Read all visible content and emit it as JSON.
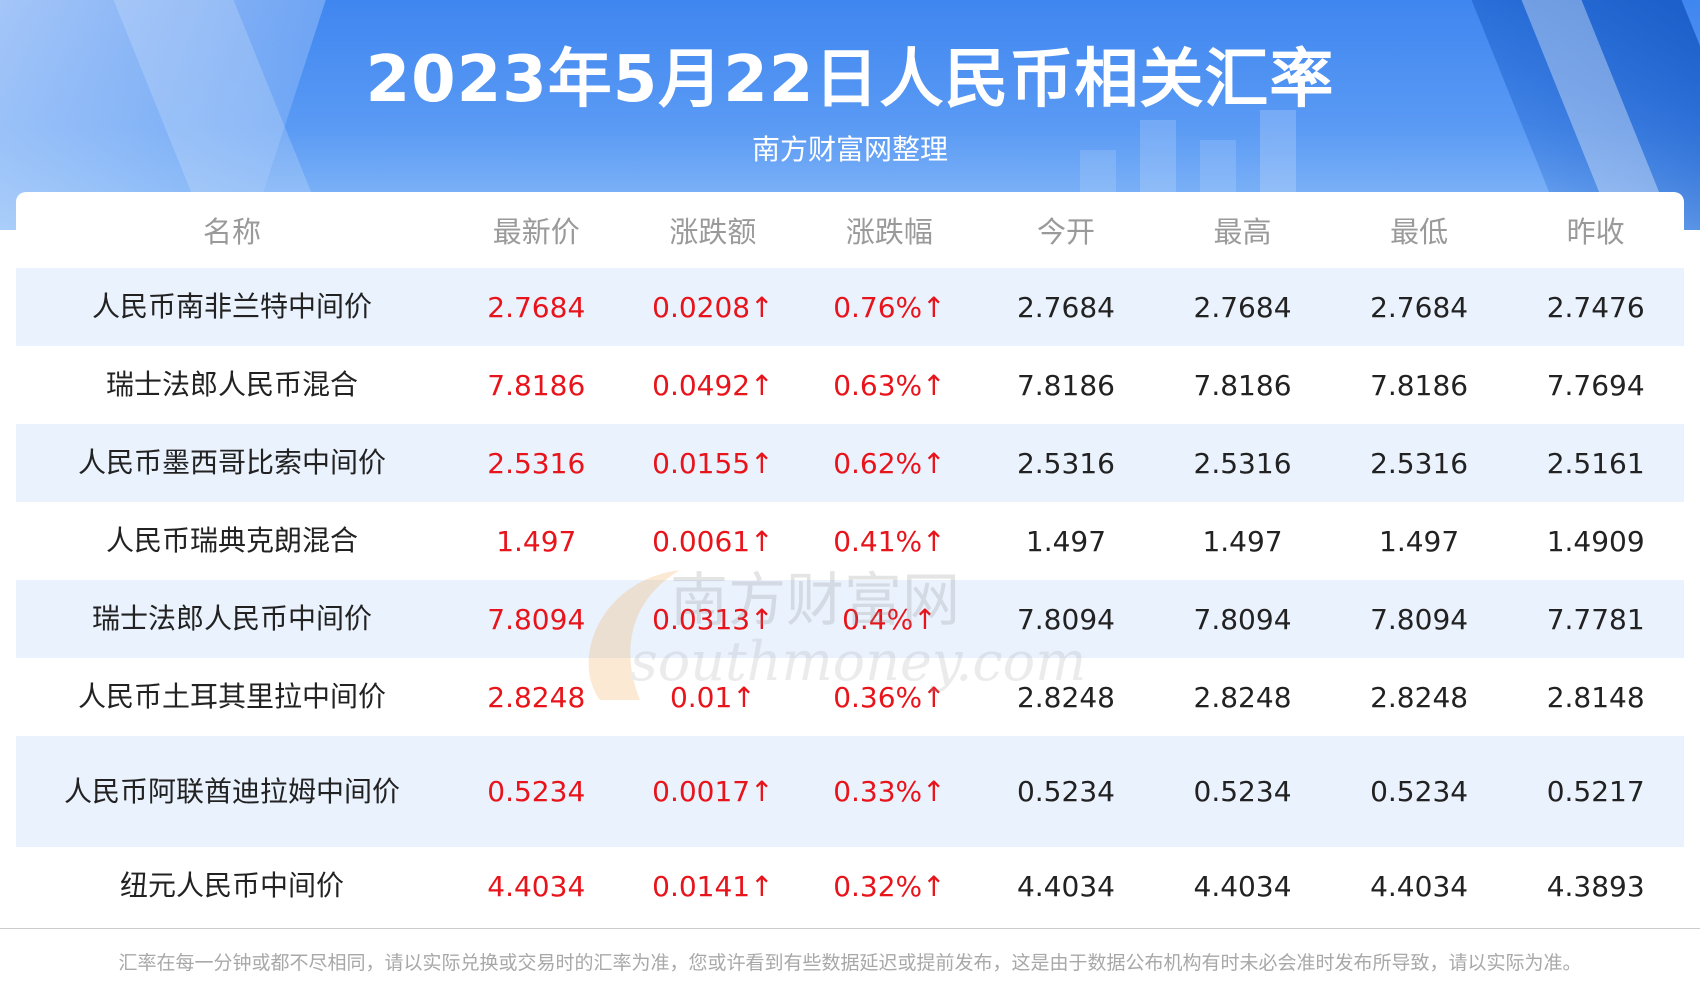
{
  "header": {
    "title": "2023年5月22日人民币相关汇率",
    "subtitle": "南方财富网整理"
  },
  "table": {
    "columns": [
      "名称",
      "最新价",
      "涨跌额",
      "涨跌幅",
      "今开",
      "最高",
      "最低",
      "昨收"
    ],
    "rows": [
      {
        "name": "人民币南非兰特中间价",
        "latest": "2.7684",
        "change": "0.0208↑",
        "pct": "0.76%↑",
        "open": "2.7684",
        "high": "2.7684",
        "low": "2.7684",
        "prev": "2.7476"
      },
      {
        "name": "瑞士法郎人民币混合",
        "latest": "7.8186",
        "change": "0.0492↑",
        "pct": "0.63%↑",
        "open": "7.8186",
        "high": "7.8186",
        "low": "7.8186",
        "prev": "7.7694"
      },
      {
        "name": "人民币墨西哥比索中间价",
        "latest": "2.5316",
        "change": "0.0155↑",
        "pct": "0.62%↑",
        "open": "2.5316",
        "high": "2.5316",
        "low": "2.5316",
        "prev": "2.5161"
      },
      {
        "name": "人民币瑞典克朗混合",
        "latest": "1.497",
        "change": "0.0061↑",
        "pct": "0.41%↑",
        "open": "1.497",
        "high": "1.497",
        "low": "1.497",
        "prev": "1.4909"
      },
      {
        "name": "瑞士法郎人民币中间价",
        "latest": "7.8094",
        "change": "0.0313↑",
        "pct": "0.4%↑",
        "open": "7.8094",
        "high": "7.8094",
        "low": "7.8094",
        "prev": "7.7781"
      },
      {
        "name": "人民币土耳其里拉中间价",
        "latest": "2.8248",
        "change": "0.01↑",
        "pct": "0.36%↑",
        "open": "2.8248",
        "high": "2.8248",
        "low": "2.8248",
        "prev": "2.8148"
      },
      {
        "name": "人民币阿联酋迪拉姆中间价",
        "latest": "0.5234",
        "change": "0.0017↑",
        "pct": "0.33%↑",
        "open": "0.5234",
        "high": "0.5234",
        "low": "0.5234",
        "prev": "0.5217"
      },
      {
        "name": "纽元人民币中间价",
        "latest": "4.4034",
        "change": "0.0141↑",
        "pct": "0.32%↑",
        "open": "4.4034",
        "high": "4.4034",
        "low": "4.4034",
        "prev": "4.3893"
      }
    ]
  },
  "watermark": {
    "text_cn": "南方财富网",
    "text_en": "southmoney.com"
  },
  "footnote": "汇率在每一分钟或都不尽相同，请以实际兑换或交易时的汇率为准，您或许看到有些数据延迟或提前发布，这是由于数据公布机构有时未必会准时发布所导致，请以实际为准。",
  "colors": {
    "header_blue": "#4a8ff2",
    "up_red": "#e8141b",
    "row_shade": "#eaf2fd",
    "header_text_gray": "#9a9a9a"
  }
}
